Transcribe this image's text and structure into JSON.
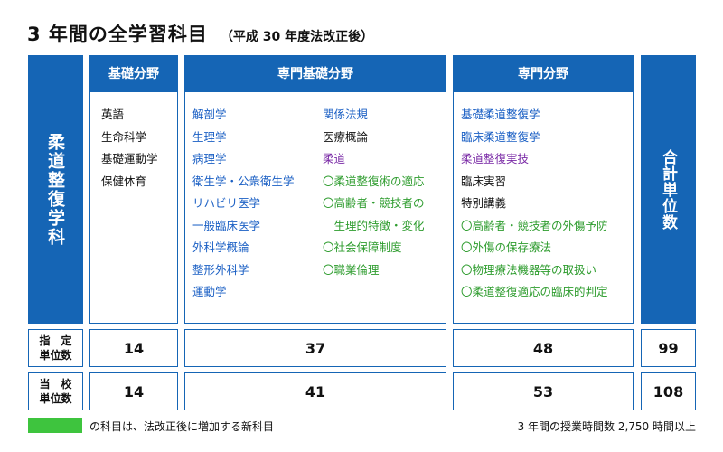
{
  "title": "3 年間の全学習科目",
  "subtitle": "（平成 30 年度法改正後）",
  "department": "柔道整復学科",
  "total_header": "合計単位数",
  "columns": {
    "kiso": {
      "header": "基礎分野",
      "items": [
        {
          "text": "英語",
          "color": "black"
        },
        {
          "text": "生命科学",
          "color": "black"
        },
        {
          "text": "基礎運動学",
          "color": "black"
        },
        {
          "text": "保健体育",
          "color": "black"
        }
      ]
    },
    "senmon_kiso": {
      "header": "専門基礎分野",
      "items_left": [
        {
          "text": "解剖学",
          "color": "blue"
        },
        {
          "text": "生理学",
          "color": "blue"
        },
        {
          "text": "病理学",
          "color": "blue"
        },
        {
          "text": "衛生学・公衆衛生学",
          "color": "blue"
        },
        {
          "text": "リハビリ医学",
          "color": "blue"
        },
        {
          "text": "一般臨床医学",
          "color": "blue"
        },
        {
          "text": "外科学概論",
          "color": "blue"
        },
        {
          "text": "整形外科学",
          "color": "blue"
        },
        {
          "text": "運動学",
          "color": "blue"
        }
      ],
      "items_right": [
        {
          "text": "関係法規",
          "color": "blue"
        },
        {
          "text": "医療概論",
          "color": "black"
        },
        {
          "text": "柔道",
          "color": "purple"
        },
        {
          "text": "〇柔道整復術の適応",
          "color": "green"
        },
        {
          "text": "〇高齢者・競技者の",
          "color": "green"
        },
        {
          "text": "　生理的特徴・変化",
          "color": "green"
        },
        {
          "text": "〇社会保障制度",
          "color": "green"
        },
        {
          "text": "〇職業倫理",
          "color": "green"
        }
      ]
    },
    "senmon": {
      "header": "専門分野",
      "items": [
        {
          "text": "基礎柔道整復学",
          "color": "blue"
        },
        {
          "text": "臨床柔道整復学",
          "color": "blue"
        },
        {
          "text": "柔道整復実技",
          "color": "purple"
        },
        {
          "text": "臨床実習",
          "color": "black"
        },
        {
          "text": "特別講義",
          "color": "black"
        },
        {
          "text": "〇高齢者・競技者の外傷予防",
          "color": "green"
        },
        {
          "text": "〇外傷の保存療法",
          "color": "green"
        },
        {
          "text": "〇物理療法機器等の取扱い",
          "color": "green"
        },
        {
          "text": "〇柔道整復適応の臨床的判定",
          "color": "green"
        }
      ]
    }
  },
  "rows": {
    "shitei": {
      "label_line1": "指　定",
      "label_line2": "単位数",
      "kiso": "14",
      "senmon_kiso": "37",
      "senmon": "48",
      "total": "99"
    },
    "toukou": {
      "label_line1": "当　校",
      "label_line2": "単位数",
      "kiso": "14",
      "senmon_kiso": "41",
      "senmon": "53",
      "total": "108"
    }
  },
  "legend": {
    "swatch_color": "#3ec43e",
    "text": "の科目は、法改正後に増加する新科目"
  },
  "footer_note": "3 年間の授業時間数 2,750 時間以上",
  "colors": {
    "accent_blue": "#1565b5",
    "text_blue": "#1a5fc4",
    "text_purple": "#7a2aa6",
    "text_green": "#2e9c2e"
  }
}
